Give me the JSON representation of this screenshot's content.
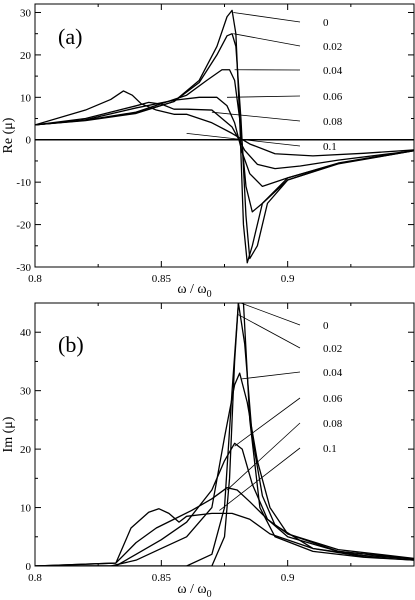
{
  "chart_data": [
    {
      "type": "line",
      "panel_label": "(a)",
      "xlabel": "ω / ω",
      "xlabel_sub": "0",
      "ylabel": "Re (μ)",
      "xlim": [
        0.8,
        0.95
      ],
      "ylim": [
        -30,
        32
      ],
      "xticks": [
        0.8,
        0.85,
        0.9
      ],
      "xtick_labels": [
        "0.8",
        "0.85",
        "0.9"
      ],
      "yticks": [
        -30,
        -20,
        -10,
        0,
        10,
        20,
        30
      ],
      "ytick_labels": [
        "-30",
        "-20",
        "-10",
        "0",
        "10",
        "20",
        "30"
      ],
      "zero_line": true,
      "series": [
        {
          "name": "0",
          "x": [
            0.8,
            0.82,
            0.84,
            0.855,
            0.865,
            0.872,
            0.876,
            0.878,
            0.8795,
            0.881,
            0.8825,
            0.884,
            0.886,
            0.89,
            0.9,
            0.92,
            0.95
          ],
          "y": [
            3.5,
            4.5,
            6.2,
            9,
            14,
            22,
            29,
            30.5,
            25,
            5,
            -20,
            -29,
            -25,
            -15,
            -9,
            -5.5,
            -2.5
          ]
        },
        {
          "name": "0.02",
          "x": [
            0.8,
            0.82,
            0.84,
            0.855,
            0.865,
            0.872,
            0.876,
            0.878,
            0.8795,
            0.8815,
            0.8835,
            0.885,
            0.888,
            0.892,
            0.9,
            0.92,
            0.95
          ],
          "y": [
            3.5,
            4.6,
            6.3,
            9,
            13.5,
            20,
            24.5,
            25,
            22,
            5,
            -18,
            -28,
            -25,
            -15,
            -9.5,
            -5.6,
            -2.5
          ]
        },
        {
          "name": "0.04",
          "x": [
            0.8,
            0.82,
            0.84,
            0.86,
            0.868,
            0.874,
            0.877,
            0.879,
            0.881,
            0.8835,
            0.886,
            0.89,
            0.9,
            0.92,
            0.95
          ],
          "y": [
            3.5,
            4.6,
            6.5,
            10.5,
            14,
            16.5,
            16.5,
            14,
            5,
            -11,
            -17,
            -15,
            -9.5,
            -5.7,
            -2.6
          ]
        },
        {
          "name": "0.06",
          "x": [
            0.8,
            0.82,
            0.84,
            0.855,
            0.865,
            0.872,
            0.876,
            0.879,
            0.882,
            0.885,
            0.89,
            0.9,
            0.92,
            0.95
          ],
          "y": [
            3.5,
            4.7,
            7.5,
            9.3,
            10,
            10,
            8,
            4,
            -3,
            -8,
            -11,
            -9,
            -5.6,
            -2.6
          ]
        },
        {
          "name": "0.08",
          "x": [
            0.8,
            0.82,
            0.83,
            0.84,
            0.845,
            0.85,
            0.855,
            0.86,
            0.87,
            0.878,
            0.883,
            0.888,
            0.895,
            0.905,
            0.92,
            0.95
          ],
          "y": [
            3.5,
            5,
            6.5,
            8,
            8.8,
            8.4,
            7.2,
            7.2,
            7,
            3,
            -2.5,
            -5.8,
            -6.8,
            -6.2,
            -4.8,
            -2.6
          ]
        },
        {
          "name": "0.1",
          "x": [
            0.8,
            0.82,
            0.83,
            0.835,
            0.8385,
            0.842,
            0.848,
            0.855,
            0.86,
            0.87,
            0.878,
            0.885,
            0.895,
            0.91,
            0.93,
            0.95
          ],
          "y": [
            3.5,
            7,
            9.5,
            11.5,
            10.5,
            8.5,
            7,
            6,
            6,
            4,
            1.5,
            -1,
            -3.3,
            -3.8,
            -3.2,
            -2.4
          ]
        }
      ],
      "legend": {
        "labels": [
          "0",
          "0.02",
          "0.04",
          "0.06",
          "0.08",
          "0.1"
        ],
        "anchors": [
          [
            0.8785,
            30
          ],
          [
            0.8785,
            25
          ],
          [
            0.879,
            16.5
          ],
          [
            0.876,
            10
          ],
          [
            0.87,
            6.5
          ],
          [
            0.86,
            1.5
          ]
        ]
      }
    },
    {
      "type": "line",
      "panel_label": "(b)",
      "xlabel": "ω / ω",
      "xlabel_sub": "0",
      "ylabel": "Im (μ)",
      "xlim": [
        0.8,
        0.95
      ],
      "ylim": [
        0,
        45
      ],
      "xticks": [
        0.8,
        0.85,
        0.9
      ],
      "xtick_labels": [
        "0.8",
        "0.85",
        "0.9"
      ],
      "yticks": [
        0,
        10,
        20,
        30,
        40
      ],
      "ytick_labels": [
        "0",
        "10",
        "20",
        "30",
        "40"
      ],
      "zero_line": false,
      "series": [
        {
          "name": "0",
          "x": [
            0.8,
            0.82,
            0.84,
            0.86,
            0.87,
            0.875,
            0.877,
            0.879,
            0.8805,
            0.8815,
            0.8825,
            0.885,
            0.889,
            0.895,
            0.91,
            0.93,
            0.95
          ],
          "y": [
            0,
            0,
            0,
            0,
            0,
            5,
            15,
            35,
            45,
            45,
            45,
            25,
            10,
            5,
            2.5,
            1.5,
            1
          ]
        },
        {
          "name": "0.02",
          "x": [
            0.8,
            0.82,
            0.84,
            0.86,
            0.87,
            0.875,
            0.878,
            0.8805,
            0.883,
            0.886,
            0.89,
            0.895,
            0.91,
            0.93,
            0.95
          ],
          "y": [
            0,
            0,
            0,
            0,
            2,
            10,
            30,
            45,
            38,
            22,
            12,
            7,
            3,
            1.8,
            1.2
          ]
        },
        {
          "name": "0.04",
          "x": [
            0.8,
            0.83,
            0.84,
            0.85,
            0.86,
            0.87,
            0.875,
            0.879,
            0.881,
            0.884,
            0.888,
            0.893,
            0.9,
            0.92,
            0.95
          ],
          "y": [
            0,
            0,
            1,
            3,
            5,
            10,
            22,
            31,
            33,
            28,
            18,
            10,
            5.5,
            2.5,
            1.2
          ]
        },
        {
          "name": "0.06",
          "x": [
            0.8,
            0.832,
            0.84,
            0.85,
            0.86,
            0.87,
            0.875,
            0.879,
            0.882,
            0.886,
            0.892,
            0.9,
            0.92,
            0.95
          ],
          "y": [
            0,
            0,
            2,
            4.5,
            7.5,
            13,
            18,
            21,
            20,
            14,
            8,
            5,
            2.5,
            1.2
          ]
        },
        {
          "name": "0.08",
          "x": [
            0.8,
            0.832,
            0.84,
            0.848,
            0.855,
            0.862,
            0.87,
            0.876,
            0.88,
            0.885,
            0.892,
            0.9,
            0.92,
            0.95
          ],
          "y": [
            0,
            0.5,
            4,
            6.5,
            8,
            9.5,
            11.5,
            13.4,
            13,
            11,
            8,
            5.5,
            2.8,
            1.3
          ]
        },
        {
          "name": "0.1",
          "x": [
            0.8,
            0.832,
            0.838,
            0.845,
            0.849,
            0.853,
            0.857,
            0.86,
            0.87,
            0.878,
            0.885,
            0.893,
            0.91,
            0.93,
            0.95
          ],
          "y": [
            0,
            0.5,
            6.5,
            9.2,
            9.8,
            9,
            7.5,
            8.5,
            9,
            9,
            8,
            5.5,
            3,
            1.6,
            1
          ]
        }
      ],
      "legend": {
        "labels": [
          "0",
          "0.02",
          "0.04",
          "0.06",
          "0.08",
          "0.1"
        ],
        "anchors": [
          [
            0.8815,
            45
          ],
          [
            0.8805,
            43
          ],
          [
            0.8815,
            32
          ],
          [
            0.879,
            20.5
          ],
          [
            0.876,
            13
          ],
          [
            0.873,
            9.5
          ]
        ]
      }
    }
  ]
}
